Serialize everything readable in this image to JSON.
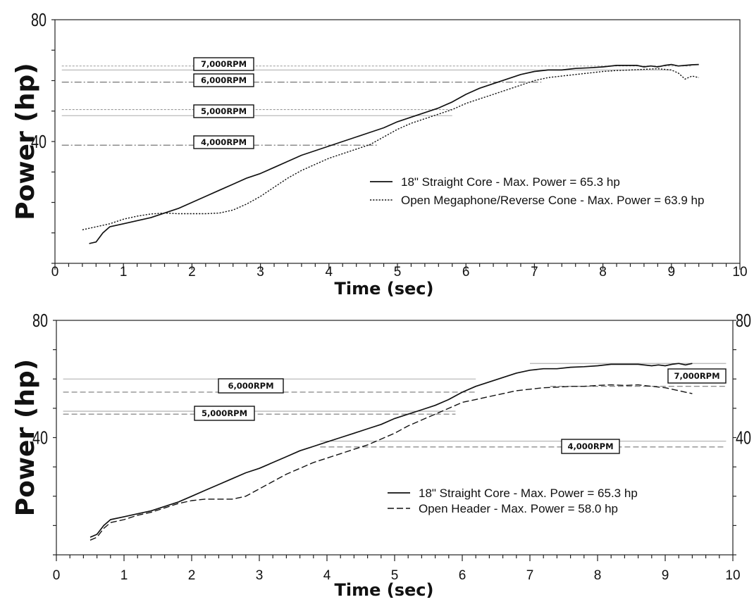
{
  "chart_data": [
    {
      "type": "line",
      "xlabel": "Time (sec)",
      "ylabel": "Power (hp)",
      "xlim": [
        0,
        10
      ],
      "ylim": [
        0,
        80
      ],
      "x_ticks": [
        "0",
        "1",
        "2",
        "3",
        "4",
        "5",
        "6",
        "7",
        "8",
        "9",
        "10"
      ],
      "y_ticks": [
        "40",
        "80"
      ],
      "right_axis": false,
      "grid": false,
      "legend_position": "center-right",
      "series": [
        {
          "name": "18\" Straight Core - Max. Power = 65.3 hp",
          "style": "solid",
          "x": [
            0.5,
            0.6,
            0.7,
            0.8,
            1.0,
            1.2,
            1.4,
            1.6,
            1.8,
            2.0,
            2.2,
            2.4,
            2.6,
            2.8,
            3.0,
            3.2,
            3.4,
            3.6,
            3.8,
            4.0,
            4.2,
            4.4,
            4.6,
            4.8,
            5.0,
            5.2,
            5.4,
            5.6,
            5.8,
            6.0,
            6.2,
            6.4,
            6.6,
            6.8,
            7.0,
            7.2,
            7.4,
            7.6,
            7.8,
            8.0,
            8.2,
            8.4,
            8.5,
            8.6,
            8.7,
            8.8,
            8.9,
            9.0,
            9.1,
            9.2,
            9.3,
            9.4
          ],
          "y": [
            6.5,
            7,
            10,
            12,
            13,
            14,
            15,
            16.5,
            18,
            20,
            22,
            24,
            26,
            28,
            29.5,
            31.5,
            33.5,
            35.5,
            37,
            38.5,
            40,
            41.5,
            43,
            44.5,
            46.5,
            48,
            49.5,
            51,
            53,
            55.5,
            57.5,
            59,
            60.5,
            62,
            63,
            63.5,
            63.5,
            64,
            64.2,
            64.5,
            65,
            65,
            65,
            64.5,
            64.8,
            64.5,
            65,
            65.3,
            64.8,
            65,
            65.2,
            65.3
          ]
        },
        {
          "name": "Open Megaphone/Reverse Cone - Max. Power = 63.9 hp",
          "style": "dotted",
          "x": [
            0.4,
            0.6,
            0.8,
            1.0,
            1.2,
            1.4,
            1.6,
            1.8,
            2.0,
            2.2,
            2.4,
            2.6,
            2.8,
            3.0,
            3.2,
            3.4,
            3.6,
            3.8,
            4.0,
            4.2,
            4.4,
            4.6,
            4.8,
            5.0,
            5.2,
            5.4,
            5.6,
            5.8,
            6.0,
            6.2,
            6.4,
            6.6,
            6.8,
            7.0,
            7.2,
            7.4,
            7.6,
            7.8,
            8.0,
            8.2,
            8.4,
            8.6,
            8.8,
            9.0,
            9.1,
            9.2,
            9.3,
            9.4
          ],
          "y": [
            11,
            12,
            13,
            14.5,
            15.5,
            16.2,
            16.5,
            16.3,
            16.3,
            16.3,
            16.5,
            17.5,
            19.5,
            22,
            25,
            28,
            30.5,
            32.5,
            34.5,
            36,
            37.5,
            39,
            41.5,
            44,
            46,
            47.5,
            49,
            50.5,
            52.5,
            54,
            55.5,
            57,
            58.5,
            60,
            61,
            61.5,
            62,
            62.5,
            63,
            63.3,
            63.5,
            63.7,
            63.9,
            63.5,
            62.5,
            60.5,
            61.5,
            61
          ]
        }
      ],
      "annotations": [
        {
          "text": "7,000RPM",
          "y": 63.5
        },
        {
          "text": "6,000RPM",
          "y": 59.5
        },
        {
          "text": "5,000RPM",
          "y": 49
        },
        {
          "text": "4,000RPM",
          "y": 39
        }
      ]
    },
    {
      "type": "line",
      "xlabel": "Time (sec)",
      "ylabel": "Power (hp)",
      "xlim": [
        0,
        10
      ],
      "ylim": [
        0,
        80
      ],
      "x_ticks": [
        "0",
        "1",
        "2",
        "3",
        "4",
        "5",
        "6",
        "7",
        "8",
        "9",
        "10"
      ],
      "y_ticks": [
        "40",
        "80"
      ],
      "right_axis": true,
      "grid": false,
      "legend_position": "center",
      "series": [
        {
          "name": "18\" Straight Core - Max. Power = 65.3 hp",
          "style": "solid",
          "x": [
            0.5,
            0.6,
            0.7,
            0.8,
            1.0,
            1.2,
            1.4,
            1.6,
            1.8,
            2.0,
            2.2,
            2.4,
            2.6,
            2.8,
            3.0,
            3.2,
            3.4,
            3.6,
            3.8,
            4.0,
            4.2,
            4.4,
            4.6,
            4.8,
            5.0,
            5.2,
            5.4,
            5.6,
            5.8,
            6.0,
            6.2,
            6.4,
            6.6,
            6.8,
            7.0,
            7.2,
            7.4,
            7.6,
            7.8,
            8.0,
            8.2,
            8.4,
            8.6,
            8.8,
            8.9,
            9.0,
            9.1,
            9.2,
            9.3,
            9.4
          ],
          "y": [
            6,
            7,
            10,
            12,
            13,
            14,
            15,
            16.5,
            18,
            20,
            22,
            24,
            26,
            28,
            29.5,
            31.5,
            33.5,
            35.5,
            37,
            38.5,
            40,
            41.5,
            43,
            44.5,
            46.5,
            48,
            49.5,
            51,
            53,
            55.5,
            57.5,
            59,
            60.5,
            62,
            63,
            63.5,
            63.5,
            64,
            64.2,
            64.5,
            65,
            65,
            65,
            64.5,
            64.8,
            64.5,
            65,
            65.3,
            64.8,
            65.3
          ]
        },
        {
          "name": "Open Header - Max. Power = 58.0 hp",
          "style": "dashed",
          "x": [
            0.5,
            0.6,
            0.7,
            0.8,
            1.0,
            1.2,
            1.4,
            1.6,
            1.8,
            2.0,
            2.2,
            2.4,
            2.6,
            2.8,
            3.0,
            3.2,
            3.4,
            3.6,
            3.8,
            4.0,
            4.2,
            4.4,
            4.6,
            4.8,
            5.0,
            5.2,
            5.4,
            5.6,
            5.8,
            6.0,
            6.2,
            6.4,
            6.6,
            6.8,
            7.0,
            7.2,
            7.4,
            7.6,
            7.8,
            8.0,
            8.2,
            8.4,
            8.6,
            8.8,
            9.0,
            9.2,
            9.4
          ],
          "y": [
            5,
            6,
            9,
            11,
            12,
            13.5,
            14.5,
            16,
            17.5,
            18.5,
            19,
            19,
            19,
            20,
            22.5,
            25,
            27.5,
            29.5,
            31.5,
            33,
            34.5,
            36,
            37.5,
            39.5,
            41.5,
            44,
            46,
            48,
            50,
            52,
            53,
            54,
            55,
            56,
            56.5,
            57,
            57.2,
            57.5,
            57.5,
            57.8,
            58,
            57.8,
            58,
            57.5,
            57,
            56,
            55
          ]
        }
      ],
      "annotations": [
        {
          "text": "7,000RPM",
          "y": 57.5
        },
        {
          "text": "6,000RPM",
          "y": 57.5
        },
        {
          "text": "5,000RPM",
          "y": 47.5
        },
        {
          "text": "4,000RPM",
          "y": 37.5
        }
      ]
    }
  ]
}
